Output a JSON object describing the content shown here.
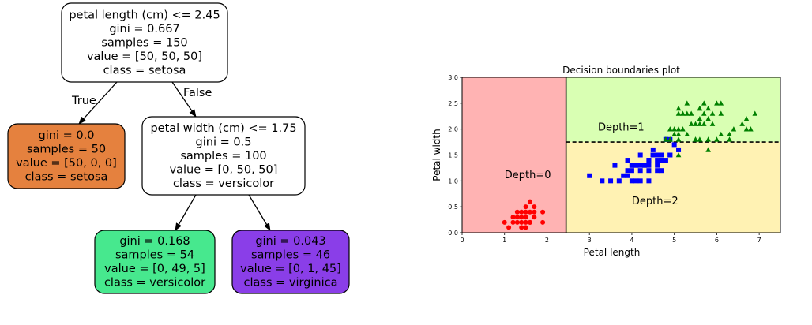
{
  "tree": {
    "colors": {
      "setosa": "#e5813e",
      "versicolor": "#47e88e",
      "virginica": "#8a3ee8",
      "split": "#ffffff",
      "edge": "#000000"
    },
    "nodes": [
      {
        "id": "root",
        "fill": "split",
        "lines": [
          "petal length (cm) <= 2.45",
          "gini = 0.667",
          "samples = 150",
          "value = [50, 50, 50]",
          "class = setosa"
        ]
      },
      {
        "id": "left",
        "fill": "setosa",
        "lines": [
          "gini = 0.0",
          "samples = 50",
          "value = [50, 0, 0]",
          "class = setosa"
        ]
      },
      {
        "id": "right",
        "fill": "split",
        "lines": [
          "petal width (cm) <= 1.75",
          "gini = 0.5",
          "samples = 100",
          "value = [0, 50, 50]",
          "class = versicolor"
        ]
      },
      {
        "id": "rl",
        "fill": "versicolor",
        "lines": [
          "gini = 0.168",
          "samples = 54",
          "value = [0, 49, 5]",
          "class = versicolor"
        ]
      },
      {
        "id": "rr",
        "fill": "virginica",
        "lines": [
          "gini = 0.043",
          "samples = 46",
          "value = [0, 1, 45]",
          "class = virginica"
        ]
      }
    ],
    "edges": [
      {
        "from": "root",
        "to": "left",
        "label": "True"
      },
      {
        "from": "root",
        "to": "right",
        "label": "False"
      },
      {
        "from": "right",
        "to": "rl",
        "label": ""
      },
      {
        "from": "right",
        "to": "rr",
        "label": ""
      }
    ]
  },
  "plot": {
    "title": "Decision boundaries plot",
    "xlabel": "Petal length",
    "ylabel": "Petal width",
    "xlim": [
      0,
      7.5
    ],
    "ylim": [
      0,
      3.0
    ],
    "xticks": [
      "0",
      "1",
      "2",
      "3",
      "4",
      "5",
      "6",
      "7"
    ],
    "yticks": [
      "0.0",
      "0.5",
      "1.0",
      "1.5",
      "2.0",
      "2.5",
      "3.0"
    ],
    "split_x": 2.45,
    "split_y": 1.75,
    "regions": {
      "left": "#ffb3b3",
      "upper_right": "#d9ffb3",
      "lower_right": "#fff2b3"
    },
    "labels": [
      {
        "text": "Depth=0",
        "x": 1.0,
        "y": 1.05
      },
      {
        "text": "Depth=1",
        "x": 3.2,
        "y": 1.97
      },
      {
        "text": "Depth=2",
        "x": 4.0,
        "y": 0.55
      }
    ],
    "setosa": {
      "color": "#ff0000",
      "marker": "circle",
      "points": [
        [
          1.4,
          0.2
        ],
        [
          1.3,
          0.2
        ],
        [
          1.5,
          0.2
        ],
        [
          1.4,
          0.4
        ],
        [
          1.7,
          0.4
        ],
        [
          1.5,
          0.3
        ],
        [
          1.5,
          0.1
        ],
        [
          1.6,
          0.2
        ],
        [
          1.1,
          0.1
        ],
        [
          1.2,
          0.2
        ],
        [
          1.3,
          0.4
        ],
        [
          1.4,
          0.3
        ],
        [
          1.7,
          0.3
        ],
        [
          1.5,
          0.4
        ],
        [
          1.0,
          0.2
        ],
        [
          1.7,
          0.5
        ],
        [
          1.9,
          0.2
        ],
        [
          1.6,
          0.4
        ],
        [
          1.5,
          0.5
        ],
        [
          1.6,
          0.6
        ],
        [
          1.9,
          0.4
        ],
        [
          1.3,
          0.3
        ],
        [
          1.6,
          0.2
        ],
        [
          1.4,
          0.1
        ],
        [
          1.2,
          0.3
        ]
      ]
    },
    "versicolor": {
      "color": "#0000ff",
      "marker": "square",
      "points": [
        [
          4.7,
          1.4
        ],
        [
          4.5,
          1.5
        ],
        [
          4.9,
          1.5
        ],
        [
          4.0,
          1.3
        ],
        [
          4.6,
          1.5
        ],
        [
          3.3,
          1.0
        ],
        [
          4.6,
          1.3
        ],
        [
          3.9,
          1.4
        ],
        [
          3.5,
          1.0
        ],
        [
          4.2,
          1.5
        ],
        [
          4.0,
          1.0
        ],
        [
          4.7,
          1.4
        ],
        [
          3.6,
          1.3
        ],
        [
          4.4,
          1.4
        ],
        [
          4.5,
          1.5
        ],
        [
          4.1,
          1.0
        ],
        [
          4.5,
          1.5
        ],
        [
          3.9,
          1.1
        ],
        [
          4.8,
          1.8
        ],
        [
          4.0,
          1.3
        ],
        [
          4.9,
          1.5
        ],
        [
          4.7,
          1.2
        ],
        [
          4.3,
          1.3
        ],
        [
          4.4,
          1.4
        ],
        [
          4.8,
          1.4
        ],
        [
          5.0,
          1.7
        ],
        [
          4.5,
          1.5
        ],
        [
          3.8,
          1.1
        ],
        [
          3.7,
          1.0
        ],
        [
          3.9,
          1.2
        ],
        [
          5.1,
          1.6
        ],
        [
          4.5,
          1.5
        ],
        [
          4.7,
          1.5
        ],
        [
          4.4,
          1.3
        ],
        [
          4.1,
          1.3
        ],
        [
          4.0,
          1.3
        ],
        [
          4.4,
          1.2
        ],
        [
          4.6,
          1.4
        ],
        [
          4.0,
          1.2
        ],
        [
          3.0,
          1.1
        ],
        [
          4.2,
          1.3
        ],
        [
          4.2,
          1.2
        ],
        [
          4.3,
          1.3
        ],
        [
          4.1,
          1.3
        ],
        [
          4.5,
          1.6
        ],
        [
          4.8,
          1.8
        ],
        [
          4.9,
          1.8
        ],
        [
          4.2,
          1.0
        ],
        [
          4.6,
          1.2
        ],
        [
          4.4,
          1.0
        ]
      ]
    },
    "virginica": {
      "color": "#008000",
      "marker": "triangle",
      "points": [
        [
          6.0,
          2.5
        ],
        [
          5.1,
          1.9
        ],
        [
          5.9,
          2.1
        ],
        [
          5.6,
          1.8
        ],
        [
          5.8,
          2.2
        ],
        [
          6.6,
          2.1
        ],
        [
          6.3,
          1.8
        ],
        [
          5.8,
          1.8
        ],
        [
          6.1,
          2.5
        ],
        [
          5.1,
          2.0
        ],
        [
          5.3,
          1.9
        ],
        [
          5.5,
          2.1
        ],
        [
          5.0,
          2.0
        ],
        [
          5.1,
          2.4
        ],
        [
          5.3,
          2.3
        ],
        [
          5.5,
          1.8
        ],
        [
          6.7,
          2.2
        ],
        [
          6.9,
          2.3
        ],
        [
          5.7,
          2.3
        ],
        [
          4.9,
          2.0
        ],
        [
          6.7,
          2.0
        ],
        [
          4.9,
          1.8
        ],
        [
          5.7,
          2.1
        ],
        [
          6.0,
          1.8
        ],
        [
          4.8,
          1.8
        ],
        [
          4.9,
          1.8
        ],
        [
          5.6,
          2.1
        ],
        [
          5.8,
          1.6
        ],
        [
          6.1,
          1.9
        ],
        [
          6.4,
          2.0
        ],
        [
          5.6,
          2.2
        ],
        [
          5.1,
          1.5
        ],
        [
          6.1,
          2.3
        ],
        [
          5.6,
          2.4
        ],
        [
          5.5,
          1.8
        ],
        [
          4.8,
          1.8
        ],
        [
          5.4,
          2.1
        ],
        [
          5.6,
          2.4
        ],
        [
          5.1,
          2.3
        ],
        [
          5.9,
          2.3
        ],
        [
          5.7,
          2.5
        ],
        [
          5.2,
          2.3
        ],
        [
          5.0,
          1.9
        ],
        [
          5.2,
          2.0
        ],
        [
          5.4,
          2.3
        ],
        [
          5.1,
          1.8
        ],
        [
          6.3,
          1.9
        ],
        [
          6.8,
          2.0
        ],
        [
          5.3,
          2.5
        ],
        [
          5.8,
          2.4
        ]
      ]
    }
  }
}
